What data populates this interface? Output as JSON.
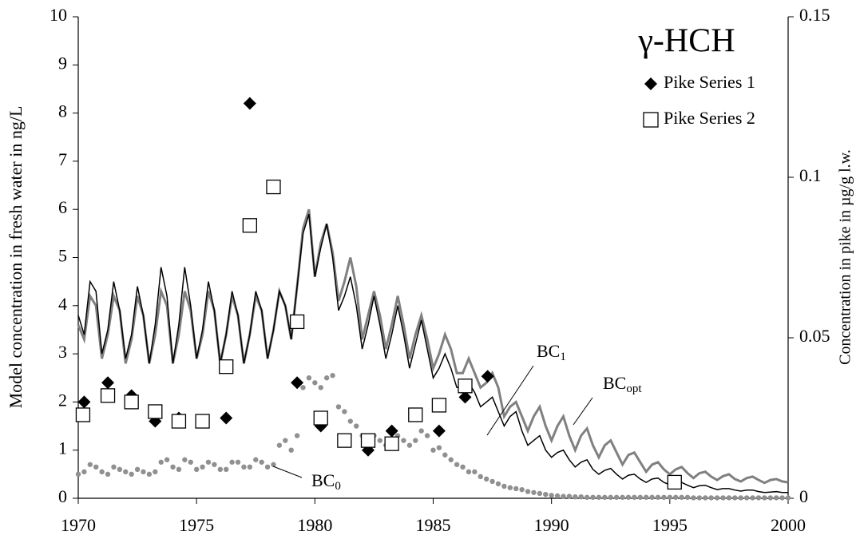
{
  "chart_data": {
    "type": "line",
    "title": "γ-HCH",
    "y_label": "Model concentration in fresh water in ng/L",
    "y2_label": "Concentration in pike in µg/g l.w.",
    "xlim": [
      1970,
      2000
    ],
    "xticks": [
      1970,
      1975,
      1980,
      1985,
      1990,
      1995,
      2000
    ],
    "ylim": [
      0,
      10
    ],
    "yticks": [
      0,
      1,
      2,
      3,
      4,
      5,
      6,
      7,
      8,
      9,
      10
    ],
    "y2lim": [
      0,
      0.15
    ],
    "y2ticks": [
      0,
      0.05,
      0.1,
      0.15
    ],
    "x": [
      1970,
      1970.25,
      1970.5,
      1970.75,
      1971,
      1971.25,
      1971.5,
      1971.75,
      1972,
      1972.25,
      1972.5,
      1972.75,
      1973,
      1973.25,
      1973.5,
      1973.75,
      1974,
      1974.25,
      1974.5,
      1974.75,
      1975,
      1975.25,
      1975.5,
      1975.75,
      1976,
      1976.25,
      1976.5,
      1976.75,
      1977,
      1977.25,
      1977.5,
      1977.75,
      1978,
      1978.25,
      1978.5,
      1978.75,
      1979,
      1979.25,
      1979.5,
      1979.75,
      1980,
      1980.25,
      1980.5,
      1980.75,
      1981,
      1981.25,
      1981.5,
      1981.75,
      1982,
      1982.25,
      1982.5,
      1982.75,
      1983,
      1983.25,
      1983.5,
      1983.75,
      1984,
      1984.25,
      1984.5,
      1984.75,
      1985,
      1985.25,
      1985.5,
      1985.75,
      1986,
      1986.25,
      1986.5,
      1986.75,
      1987,
      1987.25,
      1987.5,
      1987.75,
      1988,
      1988.25,
      1988.5,
      1988.75,
      1989,
      1989.25,
      1989.5,
      1989.75,
      1990,
      1990.25,
      1990.5,
      1990.75,
      1991,
      1991.25,
      1991.5,
      1991.75,
      1992,
      1992.25,
      1992.5,
      1992.75,
      1993,
      1993.25,
      1993.5,
      1993.75,
      1994,
      1994.25,
      1994.5,
      1994.75,
      1995,
      1995.25,
      1995.5,
      1995.75,
      1996,
      1996.25,
      1996.5,
      1996.75,
      1997,
      1997.25,
      1997.5,
      1997.75,
      1998,
      1998.25,
      1998.5,
      1998.75,
      1999,
      1999.25,
      1999.5,
      1999.75,
      2000
    ],
    "series": [
      {
        "label": "BC",
        "label_sub": "opt",
        "marker": "line",
        "color": "#808080",
        "values": [
          3.6,
          3.3,
          4.2,
          4.0,
          2.9,
          3.4,
          4.2,
          3.9,
          2.8,
          3.3,
          4.2,
          3.8,
          2.8,
          3.4,
          4.3,
          4.0,
          2.8,
          3.4,
          4.3,
          3.9,
          2.9,
          3.4,
          4.3,
          3.9,
          2.8,
          3.4,
          4.2,
          3.8,
          2.8,
          3.4,
          4.2,
          3.9,
          2.9,
          3.5,
          4.3,
          4.0,
          3.3,
          4.4,
          5.6,
          6.0,
          4.6,
          5.3,
          5.7,
          5.1,
          4.1,
          4.5,
          5.0,
          4.4,
          3.3,
          3.8,
          4.3,
          3.8,
          3.1,
          3.6,
          4.2,
          3.6,
          2.9,
          3.4,
          3.8,
          3.3,
          2.7,
          3.0,
          3.4,
          3.1,
          2.6,
          2.6,
          2.9,
          2.6,
          2.3,
          2.4,
          2.6,
          2.3,
          1.7,
          1.9,
          2.0,
          1.7,
          1.4,
          1.7,
          1.9,
          1.5,
          1.2,
          1.5,
          1.7,
          1.3,
          1.0,
          1.3,
          1.45,
          1.1,
          0.85,
          1.1,
          1.2,
          0.95,
          0.7,
          0.9,
          0.95,
          0.75,
          0.55,
          0.7,
          0.75,
          0.6,
          0.5,
          0.6,
          0.65,
          0.52,
          0.42,
          0.52,
          0.55,
          0.45,
          0.38,
          0.46,
          0.5,
          0.4,
          0.35,
          0.42,
          0.45,
          0.38,
          0.32,
          0.38,
          0.4,
          0.35,
          0.33
        ]
      },
      {
        "label": "BC",
        "label_sub": "1",
        "marker": "line",
        "color": "#000000",
        "values": [
          3.8,
          3.4,
          4.5,
          4.3,
          3.0,
          3.5,
          4.5,
          3.9,
          2.9,
          3.4,
          4.4,
          3.8,
          2.8,
          3.6,
          4.8,
          4.2,
          2.8,
          3.6,
          4.8,
          4.0,
          2.9,
          3.5,
          4.5,
          3.9,
          2.8,
          3.4,
          4.3,
          3.8,
          2.8,
          3.4,
          4.3,
          3.9,
          2.9,
          3.5,
          4.3,
          4.0,
          3.3,
          4.4,
          5.5,
          5.9,
          4.6,
          5.2,
          5.7,
          5.0,
          3.9,
          4.2,
          4.6,
          4.0,
          3.1,
          3.6,
          4.2,
          3.6,
          2.9,
          3.4,
          4.0,
          3.4,
          2.7,
          3.2,
          3.7,
          3.1,
          2.5,
          2.7,
          3.0,
          2.7,
          2.3,
          2.3,
          2.4,
          2.2,
          1.9,
          2.0,
          2.1,
          1.8,
          1.5,
          1.7,
          1.8,
          1.4,
          1.1,
          1.2,
          1.3,
          1.0,
          0.85,
          0.95,
          1.0,
          0.8,
          0.65,
          0.75,
          0.8,
          0.6,
          0.5,
          0.58,
          0.62,
          0.5,
          0.4,
          0.48,
          0.5,
          0.4,
          0.33,
          0.4,
          0.42,
          0.33,
          0.28,
          0.32,
          0.33,
          0.27,
          0.22,
          0.26,
          0.27,
          0.22,
          0.18,
          0.2,
          0.2,
          0.17,
          0.15,
          0.17,
          0.17,
          0.14,
          0.12,
          0.13,
          0.14,
          0.12,
          0.12
        ]
      },
      {
        "label": "BC",
        "label_sub": "0",
        "marker": "dots",
        "color": "#909090",
        "values": [
          0.5,
          0.55,
          0.7,
          0.65,
          0.55,
          0.5,
          0.65,
          0.6,
          0.55,
          0.5,
          0.6,
          0.55,
          0.5,
          0.55,
          0.75,
          0.8,
          0.65,
          0.6,
          0.8,
          0.75,
          0.6,
          0.65,
          0.75,
          0.7,
          0.6,
          0.6,
          0.75,
          0.75,
          0.65,
          0.65,
          0.8,
          0.75,
          0.65,
          0.7,
          1.1,
          1.2,
          1.0,
          1.3,
          2.3,
          2.5,
          2.4,
          2.3,
          2.5,
          2.55,
          1.9,
          1.8,
          1.6,
          1.5,
          1.3,
          1.2,
          1.3,
          1.2,
          1.1,
          1.15,
          1.3,
          1.2,
          1.1,
          1.2,
          1.4,
          1.3,
          1.0,
          1.05,
          0.9,
          0.8,
          0.7,
          0.65,
          0.55,
          0.55,
          0.45,
          0.4,
          0.35,
          0.3,
          0.25,
          0.22,
          0.2,
          0.18,
          0.14,
          0.12,
          0.1,
          0.08,
          0.06,
          0.05,
          0.04,
          0.04,
          0.03,
          0.03,
          0.02,
          0.02,
          0.02,
          0.02,
          0.02,
          0.02,
          0.02,
          0.02,
          0.02,
          0.02,
          0.02,
          0.02,
          0.02,
          0.02,
          0.02,
          0.02,
          0.02,
          0.02,
          0.01,
          0.01,
          0.01,
          0.01,
          0.01,
          0.01,
          0.01,
          0.01,
          0.01,
          0.01,
          0.01,
          0.01,
          0.01,
          0.01,
          0.01,
          0.01,
          0.01
        ]
      },
      {
        "name": "Pike Series 1",
        "marker": "diamond",
        "axis": "y2",
        "color": "#000000",
        "x": [
          1970.25,
          1971.25,
          1972.25,
          1973.25,
          1974.25,
          1976.25,
          1977.25,
          1979.25,
          1980.25,
          1982.25,
          1983.25,
          1985.25,
          1986.35,
          1987.3
        ],
        "values": [
          0.03,
          0.036,
          0.032,
          0.024,
          0.025,
          0.025,
          0.123,
          0.036,
          0.0225,
          0.015,
          0.021,
          0.021,
          0.0315,
          0.038
        ]
      },
      {
        "name": "Pike Series 2",
        "marker": "square",
        "axis": "y2",
        "color": "#000000",
        "x": [
          1970.2,
          1971.25,
          1972.25,
          1973.25,
          1974.25,
          1975.25,
          1976.25,
          1977.25,
          1978.25,
          1979.25,
          1980.25,
          1981.25,
          1982.25,
          1983.25,
          1984.25,
          1985.25,
          1986.35,
          1995.2
        ],
        "values": [
          0.026,
          0.032,
          0.03,
          0.027,
          0.024,
          0.024,
          0.041,
          0.085,
          0.097,
          0.055,
          0.025,
          0.018,
          0.018,
          0.017,
          0.026,
          0.029,
          0.035,
          0.005
        ]
      }
    ]
  }
}
